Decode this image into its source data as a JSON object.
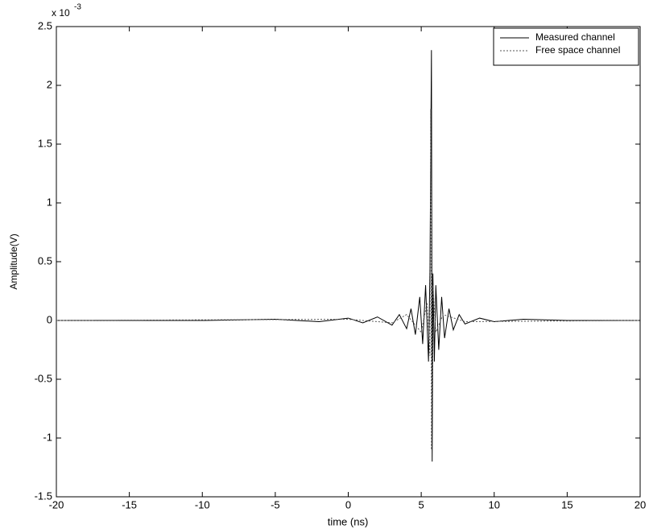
{
  "chart_data": {
    "type": "line",
    "x_label": "time (ns)",
    "y_label": "Amplitude(V)",
    "y_multiplier": {
      "base": "x 10",
      "power": "-3"
    },
    "xlim": [
      -20,
      20
    ],
    "xticks": [
      -20,
      -15,
      -10,
      -5,
      0,
      5,
      10,
      15,
      20
    ],
    "ylim": [
      -1.5,
      2.5
    ],
    "yticks": [
      -1.5,
      -1,
      -0.5,
      0,
      0.5,
      1,
      1.5,
      2,
      2.5
    ],
    "grid": false,
    "legend": "upper-right",
    "series": [
      {
        "name": "Measured channel",
        "color": "#000000",
        "style": "solid",
        "x": [
          -20,
          -10,
          -5,
          -2,
          0,
          1,
          2,
          3,
          3.5,
          4,
          4.3,
          4.6,
          4.9,
          5.1,
          5.3,
          5.5,
          5.6,
          5.7,
          5.75,
          5.8,
          5.9,
          6.0,
          6.2,
          6.4,
          6.6,
          6.9,
          7.2,
          7.6,
          8,
          9,
          10,
          12,
          15,
          20
        ],
        "values": [
          0,
          0,
          0.01,
          -0.01,
          0.02,
          -0.02,
          0.03,
          -0.04,
          0.05,
          -0.07,
          0.1,
          -0.12,
          0.2,
          -0.2,
          0.3,
          -0.35,
          0.45,
          2.3,
          -1.2,
          0.4,
          -0.35,
          0.3,
          -0.25,
          0.2,
          -0.15,
          0.1,
          -0.08,
          0.05,
          -0.03,
          0.02,
          -0.01,
          0.01,
          0,
          0
        ]
      },
      {
        "name": "Free space channel",
        "color": "#555555",
        "style": "dotted",
        "x": [
          -20,
          0,
          3,
          4,
          5,
          5.4,
          5.6,
          5.65,
          5.7,
          5.8,
          6,
          6.5,
          8,
          20
        ],
        "values": [
          0,
          0.01,
          -0.02,
          0.05,
          -0.1,
          0.15,
          -0.3,
          1.8,
          -1.1,
          0.3,
          -0.1,
          0.05,
          -0.01,
          0
        ]
      }
    ]
  }
}
